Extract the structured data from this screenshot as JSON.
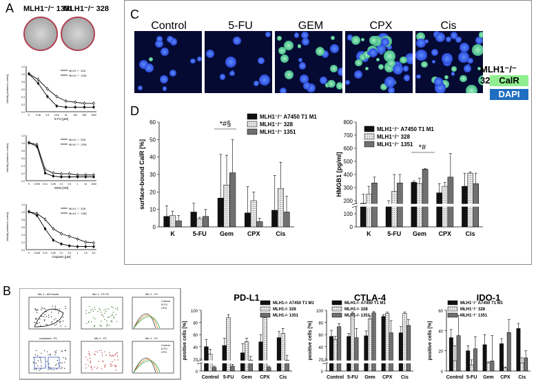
{
  "panelA": {
    "label": "A",
    "plate_titles": [
      "MLH1⁻/⁻ 1351",
      "MLH1⁻/⁻ 328"
    ],
    "charts": [
      {
        "xlabel": "5-FU [µM]",
        "ylabel": "Viability [relative to control]",
        "legend": [
          "MLH1⁻/⁻ 328",
          "MLH1⁻/⁻ 1351"
        ],
        "xticks": [
          "0",
          "0.48",
          "3.9",
          "15.6",
          "31",
          "125",
          "500",
          "1000"
        ]
      },
      {
        "xlabel": "GEM [nM]",
        "ylabel": "Viability [relative to control]",
        "legend": [
          "MLH1⁻/⁻ 328",
          "MLH1⁻/⁻ 1351"
        ],
        "xticks": [
          "0",
          "0.005",
          "0.01",
          "0.05",
          "0.1",
          "0.5",
          "1",
          "10",
          "1000"
        ]
      },
      {
        "xlabel": "Cisplatin [µM]",
        "ylabel": "Viability [relative to control]",
        "legend": [
          "MLH1⁻/⁻ 328",
          "MLH1⁻/⁻ 1351"
        ],
        "xticks": [
          "0",
          "0.005",
          "0.01",
          "0.05",
          "0.1",
          "0.5",
          "1",
          "2.5",
          "5.0"
        ]
      }
    ]
  },
  "panelC": {
    "label": "C",
    "conditions": [
      "Control",
      "5-FU",
      "GEM",
      "CPX",
      "Cis"
    ],
    "cell_line": "MLH1⁻/⁻ 328",
    "stain1": "CalR",
    "stain2": "DAPI",
    "colors": {
      "calr": "#90ee90",
      "dapi": "#1f6fc0"
    }
  },
  "panelD": {
    "label": "D",
    "categories": [
      "K",
      "5-FU",
      "Gem",
      "CPX",
      "Cis"
    ],
    "series_names": [
      "MLH1⁻/⁻ A7450 T1 M1",
      "MLH1⁻/⁻ 328",
      "MLH1⁻/⁻ 1351"
    ],
    "calr": {
      "ylabel": "surface-bound CalR [%]",
      "yticks": [
        "0",
        "10",
        "20",
        "30",
        "40",
        "50",
        "60"
      ],
      "annotation": "*#§"
    },
    "hmgb1": {
      "ylabel": "HMGB1 [pg/ml]",
      "yticks": [
        "0",
        "100",
        "200",
        "300",
        "400",
        "500",
        "600",
        "700",
        "800"
      ],
      "annotation": "*#"
    }
  },
  "panelB": {
    "label": "B",
    "flow_titles": [
      "Mix 1 - All Events",
      "Mix 1 - P1 P4",
      "Mix 1 - P1",
      "unstained - P1",
      "Mix 1 - P1",
      "Mix 1 - P1"
    ],
    "flow_legend": [
      "Control",
      "5-FU",
      "CPX"
    ],
    "charts": [
      {
        "title": "PD-L1",
        "ylabel": "positive cells [%]",
        "legend": [
          "MLH1-/- A7450 T1 M1",
          "MLH1-/- 328",
          "MLH1-/- 1351"
        ],
        "yticks": [
          "0",
          "20",
          "40",
          "60",
          "80",
          "100"
        ]
      },
      {
        "title": "CTLA-4",
        "ylabel": "positive cells [%]",
        "legend": [
          "MLH1-/- A7450 T1 M1",
          "MLH1-/- 328",
          "MLH1-/- 1351"
        ],
        "yticks": [
          "0",
          "20",
          "40",
          "60",
          "80",
          "100"
        ]
      },
      {
        "title": "IDO-1",
        "ylabel": "positive cells [%]",
        "legend": [
          "MLH1⁻/⁻ A7450 T1 M1",
          "MLH1⁻/⁻ 328",
          "MLH1⁻/⁻ 1351"
        ],
        "yticks": [
          "0",
          "20",
          "40",
          "60"
        ]
      }
    ],
    "categories": [
      "Control",
      "5-FU",
      "Gem",
      "CPX",
      "Cis"
    ]
  },
  "chart_data": [
    {
      "type": "line",
      "title": "",
      "xlabel": "5-FU [µM]",
      "ylabel": "Viability [relative to control]",
      "ylim": [
        0,
        1.2
      ],
      "series": [
        {
          "name": "MLH1⁻/⁻ 328",
          "values": [
            1.0,
            0.85,
            0.6,
            0.4,
            0.28,
            0.25,
            0.22,
            0.22
          ]
        },
        {
          "name": "MLH1⁻/⁻ 1351",
          "values": [
            1.0,
            0.75,
            0.4,
            0.15,
            0.12,
            0.12,
            0.12,
            0.12
          ]
        }
      ]
    },
    {
      "type": "line",
      "title": "",
      "xlabel": "GEM [nM]",
      "ylabel": "Viability [relative to control]",
      "ylim": [
        0,
        1.2
      ],
      "series": [
        {
          "name": "MLH1⁻/⁻ 328",
          "values": [
            1.0,
            0.95,
            0.3,
            0.2,
            0.18,
            0.18,
            0.15,
            0.15,
            0.15
          ]
        },
        {
          "name": "MLH1⁻/⁻ 1351",
          "values": [
            1.0,
            0.9,
            0.2,
            0.12,
            0.1,
            0.1,
            0.1,
            0.1,
            0.1
          ]
        }
      ]
    },
    {
      "type": "line",
      "title": "",
      "xlabel": "Cisplatin [µM]",
      "ylabel": "Viability [relative to control]",
      "ylim": [
        0,
        1.2
      ],
      "series": [
        {
          "name": "MLH1⁻/⁻ 328",
          "values": [
            1.0,
            0.95,
            0.8,
            0.55,
            0.42,
            0.35,
            0.28,
            0.2,
            0.18
          ]
        },
        {
          "name": "MLH1⁻/⁻ 1351",
          "values": [
            1.0,
            0.9,
            0.55,
            0.25,
            0.15,
            0.1,
            0.08,
            0.08,
            0.08
          ]
        }
      ]
    },
    {
      "type": "bar",
      "title": "",
      "ylabel": "surface-bound CalR [%]",
      "ylim": [
        0,
        60
      ],
      "categories": [
        "K",
        "5-FU",
        "Gem",
        "CPX",
        "Cis"
      ],
      "series": [
        {
          "name": "MLH1⁻/⁻ A7450 T1 M1",
          "values": [
            6,
            8.5,
            16.5,
            8,
            9.5
          ],
          "err": [
            6,
            5,
            25,
            15,
            20
          ]
        },
        {
          "name": "MLH1⁻/⁻ 328",
          "values": [
            6.5,
            4.5,
            24,
            15,
            22
          ],
          "err": [
            2.5,
            1,
            17,
            5,
            15
          ]
        },
        {
          "name": "MLH1⁻/⁻ 1351",
          "values": [
            3.5,
            6,
            31,
            3,
            8.5
          ],
          "err": [
            3,
            4,
            19,
            2,
            9
          ]
        }
      ]
    },
    {
      "type": "bar",
      "title": "",
      "ylabel": "HMGB1 [pg/ml]",
      "ylim": [
        0,
        800
      ],
      "categories": [
        "K",
        "5-FU",
        "Gem",
        "CPX",
        "Cis"
      ],
      "series": [
        {
          "name": "MLH1⁻/⁻ A7450 T1 M1",
          "values": [
            180,
            170,
            340,
            260,
            310
          ],
          "err": [
            70,
            30,
            10,
            70,
            100
          ]
        },
        {
          "name": "MLH1⁻/⁻ 328",
          "values": [
            250,
            270,
            330,
            310,
            410
          ],
          "err": [
            60,
            130,
            40,
            30,
            10
          ]
        },
        {
          "name": "MLH1⁻/⁻ 1351",
          "values": [
            335,
            335,
            440,
            380,
            330
          ],
          "err": [
            45,
            65,
            5,
            180,
            80
          ]
        }
      ]
    },
    {
      "type": "bar",
      "title": "PD-L1",
      "ylabel": "positive cells [%]",
      "ylim": [
        0,
        100
      ],
      "categories": [
        "Control",
        "5-FU",
        "Gem",
        "CPX",
        "Cis"
      ],
      "series": [
        {
          "name": "MLH1-/- A7450 T1 M1",
          "values": [
            40,
            42,
            30,
            48,
            55
          ],
          "err": [
            12,
            12,
            15,
            12,
            10
          ]
        },
        {
          "name": "MLH1-/- 328",
          "values": [
            28,
            88,
            48,
            88,
            62
          ],
          "err": [
            8,
            5,
            6,
            5,
            8
          ]
        },
        {
          "name": "MLH1-/- 1351",
          "values": [
            6,
            8,
            18,
            6,
            18
          ],
          "err": [
            2,
            3,
            6,
            2,
            8
          ]
        }
      ]
    },
    {
      "type": "bar",
      "title": "CTLA-4",
      "ylabel": "positive cells [%]",
      "ylim": [
        0,
        100
      ],
      "categories": [
        "Control",
        "5-FU",
        "Gem",
        "CPX",
        "Cis"
      ],
      "series": [
        {
          "name": "MLH1-/- A7450 T1 M1",
          "values": [
            57,
            57,
            58,
            90,
            63
          ],
          "err": [
            10,
            5,
            8,
            3,
            10
          ]
        },
        {
          "name": "MLH1-/- 328",
          "values": [
            52,
            95,
            86,
            95,
            95
          ],
          "err": [
            5,
            2,
            5,
            2,
            2
          ]
        },
        {
          "name": "MLH1-/- 1351",
          "values": [
            73,
            55,
            96,
            63,
            75
          ],
          "err": [
            5,
            15,
            2,
            20,
            10
          ]
        }
      ]
    },
    {
      "type": "bar",
      "title": "IDO-1",
      "ylabel": "positive cells [%]",
      "ylim": [
        0,
        60
      ],
      "categories": [
        "Control",
        "5-FU",
        "Gem",
        "CPX",
        "Cis"
      ],
      "series": [
        {
          "name": "MLH1⁻/⁻ A7450 T1 M1",
          "values": [
            33,
            20,
            26,
            27,
            42
          ],
          "err": [
            8,
            5,
            10,
            5,
            5
          ]
        },
        {
          "name": "MLH1⁻/⁻ 328",
          "values": [
            10,
            6,
            8,
            3,
            8
          ],
          "err": [
            15,
            5,
            1,
            1,
            5
          ]
        },
        {
          "name": "MLH1⁻/⁻ 1351",
          "values": [
            35,
            22,
            10,
            38,
            13
          ],
          "err": [
            20,
            12,
            25,
            13,
            7
          ]
        }
      ]
    }
  ]
}
